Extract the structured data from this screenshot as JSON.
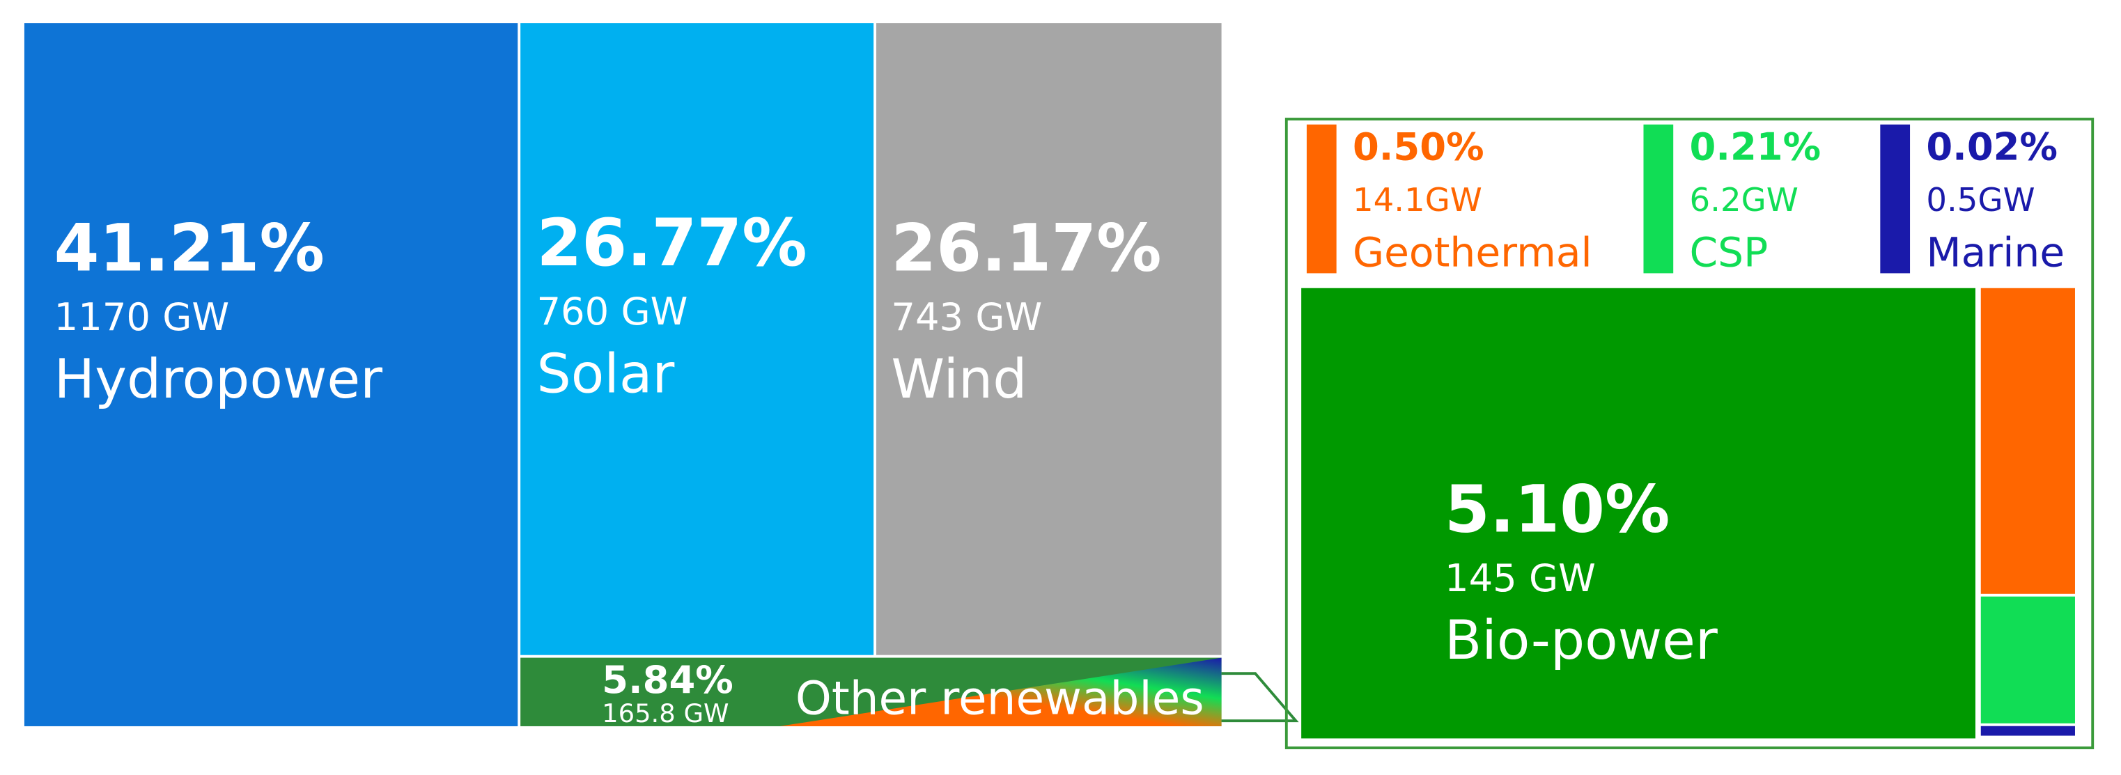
{
  "chart_data": {
    "type": "treemap",
    "items": [
      {
        "name": "Hydropower",
        "color": "#0e74d6",
        "value": 41.21,
        "value_label": "41.21%",
        "capacity": 1170,
        "capacity_label": "1170 GW"
      },
      {
        "name": "Solar",
        "color": "#00b0f0",
        "value": 26.77,
        "value_label": "26.77%",
        "capacity": 760,
        "capacity_label": "760 GW"
      },
      {
        "name": "Wind",
        "color": "#a6a6a6",
        "value": 26.17,
        "value_label": "26.17%",
        "capacity": 743,
        "capacity_label": "743 GW"
      },
      {
        "name": "Other renewables",
        "color": "#2e8b3a",
        "value": 5.84,
        "value_label": "5.84%",
        "capacity": 165.8,
        "capacity_label": "165.8 GW",
        "children": [
          {
            "name": "Bio-power",
            "color": "#009900",
            "value": 5.1,
            "value_label": "5.10%",
            "capacity": 145,
            "capacity_label": "145 GW"
          },
          {
            "name": "Geothermal",
            "color": "#ff6600",
            "value": 0.5,
            "value_label": "0.50%",
            "capacity": 14.1,
            "capacity_label": "14.1GW"
          },
          {
            "name": "CSP",
            "color": "#11dd55",
            "value": 0.21,
            "value_label": "0.21%",
            "capacity": 6.2,
            "capacity_label": "6.2GW"
          },
          {
            "name": "Marine",
            "color": "#1a1aaa",
            "value": 0.02,
            "value_label": "0.02%",
            "capacity": 0.5,
            "capacity_label": "0.5GW"
          }
        ]
      }
    ]
  }
}
